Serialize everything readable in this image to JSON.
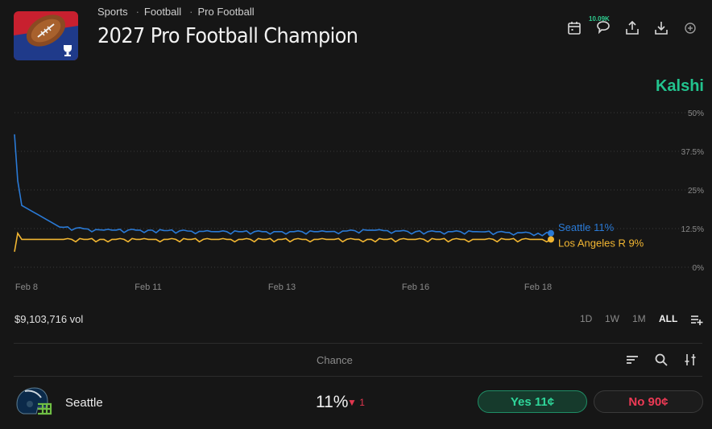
{
  "header": {
    "breadcrumbs": [
      "Sports",
      "Football",
      "Pro Football"
    ],
    "title": "2027 Pro Football Champion",
    "comment_count": "10.09K",
    "icons": [
      "calendar-icon",
      "comment-icon",
      "share-icon",
      "download-icon",
      "add-icon"
    ]
  },
  "brand": "Kalshi",
  "chart_data": {
    "type": "line",
    "x_ticks": [
      "Feb 8",
      "Feb 11",
      "Feb 13",
      "Feb 16",
      "Feb 18"
    ],
    "y_ticks": [
      "50%",
      "37.5%",
      "25%",
      "12.5%",
      "0%"
    ],
    "ylim": [
      0,
      50
    ],
    "grid": "horizontal dotted",
    "series": [
      {
        "name": "Seattle",
        "label": "Seattle 11%",
        "color": "#2a7ad6",
        "x": [
          "Feb 8",
          "Feb 8",
          "Feb 8",
          "Feb 9",
          "Feb 10",
          "Feb 11",
          "Feb 12",
          "Feb 13",
          "Feb 14",
          "Feb 15",
          "Feb 16",
          "Feb 17",
          "Feb 18",
          "Feb 18"
        ],
        "values": [
          43,
          28,
          20,
          13,
          12,
          12,
          11.5,
          11.5,
          11.5,
          12,
          11.5,
          11.5,
          11,
          11
        ]
      },
      {
        "name": "Los Angeles R",
        "label": "Los Angeles R 9%",
        "color": "#f2b632",
        "x": [
          "Feb 8",
          "Feb 8",
          "Feb 8",
          "Feb 9",
          "Feb 10",
          "Feb 11",
          "Feb 12",
          "Feb 13",
          "Feb 14",
          "Feb 15",
          "Feb 16",
          "Feb 17",
          "Feb 18",
          "Feb 18"
        ],
        "values": [
          5,
          11,
          9,
          9,
          9,
          9,
          9,
          9,
          9,
          9,
          9,
          9,
          9,
          9
        ]
      }
    ]
  },
  "volume": "$9,103,716 vol",
  "ranges": [
    {
      "label": "1D",
      "active": false
    },
    {
      "label": "1W",
      "active": false
    },
    {
      "label": "1M",
      "active": false
    },
    {
      "label": "ALL",
      "active": true
    }
  ],
  "table": {
    "chance_header": "Chance",
    "rows": [
      {
        "team": "Seattle",
        "chance": "11%",
        "change": "▼ 1",
        "yes": "Yes 11¢",
        "no": "No 90¢"
      }
    ]
  }
}
